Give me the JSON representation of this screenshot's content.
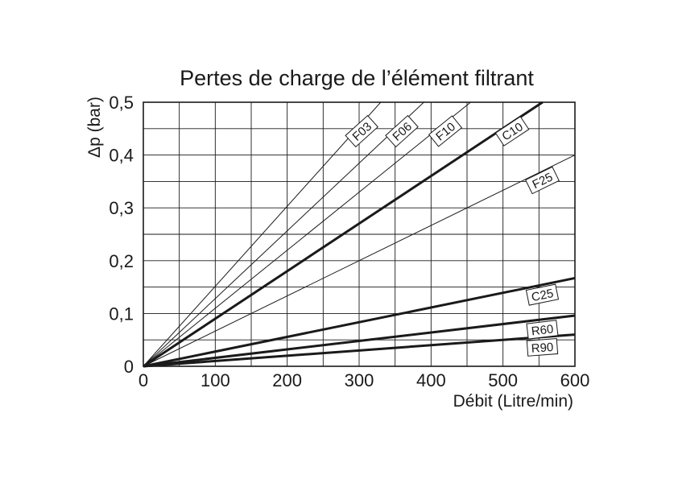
{
  "chart_data": {
    "type": "line",
    "title": "Pertes de charge de l’élément filtrant",
    "xlabel": "Débit (Litre/min)",
    "ylabel": "Δp (bar)",
    "xlim": [
      0,
      600
    ],
    "ylim": [
      0,
      0.5
    ],
    "x_ticks": [
      "0",
      "100",
      "200",
      "300",
      "400",
      "500",
      "600"
    ],
    "y_ticks": [
      "0",
      "0,1",
      "0,2",
      "0,3",
      "0,4",
      "0,5"
    ],
    "grid": true,
    "series": [
      {
        "name": "F03",
        "x": [
          0,
          330
        ],
        "y": [
          0,
          0.5
        ],
        "bold": false
      },
      {
        "name": "F06",
        "x": [
          0,
          390
        ],
        "y": [
          0,
          0.5
        ],
        "bold": false
      },
      {
        "name": "F10",
        "x": [
          0,
          455
        ],
        "y": [
          0,
          0.5
        ],
        "bold": false
      },
      {
        "name": "C10",
        "x": [
          0,
          555
        ],
        "y": [
          0,
          0.5
        ],
        "bold": true
      },
      {
        "name": "F25",
        "x": [
          0,
          600
        ],
        "y": [
          0,
          0.4
        ],
        "bold": false
      },
      {
        "name": "C25",
        "x": [
          0,
          600
        ],
        "y": [
          0,
          0.167
        ],
        "bold": true
      },
      {
        "name": "R60",
        "x": [
          0,
          600
        ],
        "y": [
          0,
          0.096
        ],
        "bold": true
      },
      {
        "name": "R90",
        "x": [
          0,
          600
        ],
        "y": [
          0,
          0.06
        ],
        "bold": true
      }
    ]
  }
}
